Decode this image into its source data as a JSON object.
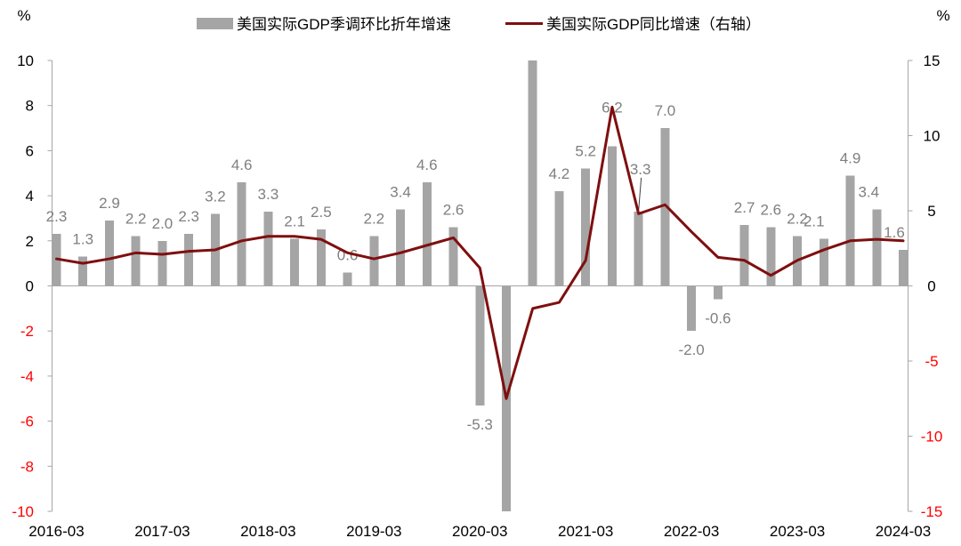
{
  "colors": {
    "background": "#FFFFFF",
    "bar": "#A5A5A5",
    "line": "#7F0F0F",
    "data_label": "#7F7F7F",
    "axis_line": "#A6A6A6",
    "leader_line": "#404040",
    "tick_label": "#000000",
    "negative_tick_label": "#FF0000"
  },
  "chart_data": {
    "type": "bar",
    "legend_position": "top",
    "categories": [
      "2016-03",
      null,
      null,
      null,
      "2017-03",
      null,
      null,
      null,
      "2018-03",
      null,
      null,
      null,
      "2019-03",
      null,
      null,
      null,
      "2020-03",
      null,
      null,
      null,
      "2021-03",
      null,
      null,
      null,
      "2022-03",
      null,
      null,
      null,
      "2023-03",
      null,
      null,
      null,
      "2024-03"
    ],
    "y_left": {
      "label": "%",
      "range": [
        -10,
        10
      ],
      "ticks": [
        10,
        8,
        6,
        4,
        2,
        0,
        -2,
        -4,
        -6,
        -8,
        -10
      ]
    },
    "y_right": {
      "label": "%",
      "range": [
        -15,
        15
      ],
      "ticks": [
        15,
        10,
        5,
        0,
        -5,
        -10,
        -15
      ]
    },
    "series": [
      {
        "name": "美国实际GDP季调环比折年增速",
        "as_line": false,
        "secondary_axis": false,
        "values": [
          2.3,
          1.3,
          2.9,
          2.2,
          2.0,
          2.3,
          3.2,
          4.6,
          3.3,
          2.1,
          2.5,
          0.6,
          2.2,
          3.4,
          4.6,
          2.6,
          -5.3,
          -10,
          10,
          4.2,
          5.2,
          6.2,
          3.3,
          7.0,
          -2.0,
          -0.6,
          2.7,
          2.6,
          2.2,
          2.1,
          4.9,
          3.4,
          1.6
        ],
        "data_labels": [
          "2.3",
          "1.3",
          "2.9",
          "2.2",
          "2.0",
          "2.3",
          "3.2",
          "4.6",
          "3.3",
          "2.1",
          "2.5",
          "0.6",
          "2.2",
          "3.4",
          "4.6",
          "2.6",
          "-5.3",
          null,
          null,
          "4.2",
          "5.2",
          "6.2",
          "3.3",
          "7.0",
          "-2.0",
          "-0.6",
          "2.7",
          "2.6",
          "2.2",
          "2.1",
          "4.9",
          "3.4",
          "1.6"
        ],
        "clipped_at_axis_limit": [
          17,
          18
        ]
      },
      {
        "name": "美国实际GDP同比增速（右轴）",
        "as_line": true,
        "secondary_axis": true,
        "values": [
          1.8,
          1.5,
          1.8,
          2.2,
          2.1,
          2.3,
          2.4,
          3.0,
          3.3,
          3.3,
          3.1,
          2.2,
          1.8,
          2.2,
          2.7,
          3.2,
          1.2,
          -7.5,
          -1.5,
          -1.1,
          1.7,
          11.9,
          4.8,
          5.4,
          3.6,
          1.9,
          1.7,
          0.7,
          1.7,
          2.4,
          3.0,
          3.1,
          3.0
        ]
      }
    ]
  }
}
